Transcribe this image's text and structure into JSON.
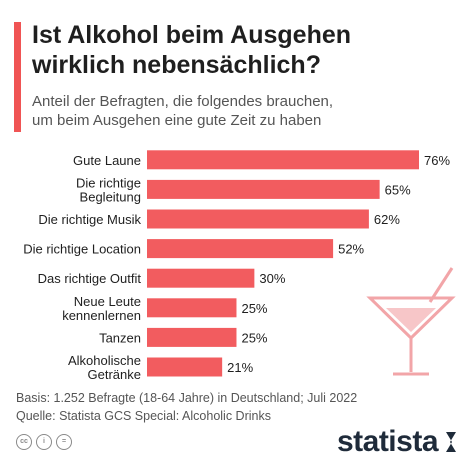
{
  "colors": {
    "accent": "#f05454",
    "bar": "#f25c5f",
    "text": "#1f1f1f",
    "brand": "#1f2b3a",
    "glass": "#f2a5a8"
  },
  "header": {
    "title_line1": "Ist Alkohol beim Ausgehen",
    "title_line2": "wirklich nebensächlich?",
    "subtitle_line1": "Anteil der Befragten, die folgendes brauchen,",
    "subtitle_line2": "um beim Ausgehen eine gute Zeit zu haben"
  },
  "chart_data": {
    "type": "bar",
    "orientation": "horizontal",
    "categories": [
      [
        "Gute Laune"
      ],
      [
        "Die richtige",
        "Begleitung"
      ],
      [
        "Die richtige Musik"
      ],
      [
        "Die richtige Location"
      ],
      [
        "Das richtige Outfit"
      ],
      [
        "Neue Leute",
        "kennenlernen"
      ],
      [
        "Tanzen"
      ],
      [
        "Alkoholische",
        "Getränke"
      ]
    ],
    "values": [
      76,
      65,
      62,
      52,
      30,
      25,
      25,
      21
    ],
    "value_labels": [
      "76%",
      "65%",
      "62%",
      "52%",
      "30%",
      "25%",
      "25%",
      "21%"
    ],
    "xlim": [
      0,
      76
    ]
  },
  "footer": {
    "basis": "Basis: 1.252 Befragte (18-64 Jahre) in Deutschland; Juli 2022",
    "source": "Quelle: Statista GCS Special: Alcoholic Drinks"
  },
  "license_icons": [
    "cc-icon",
    "person-icon",
    "equals-icon"
  ],
  "brand": {
    "name": "statista"
  }
}
